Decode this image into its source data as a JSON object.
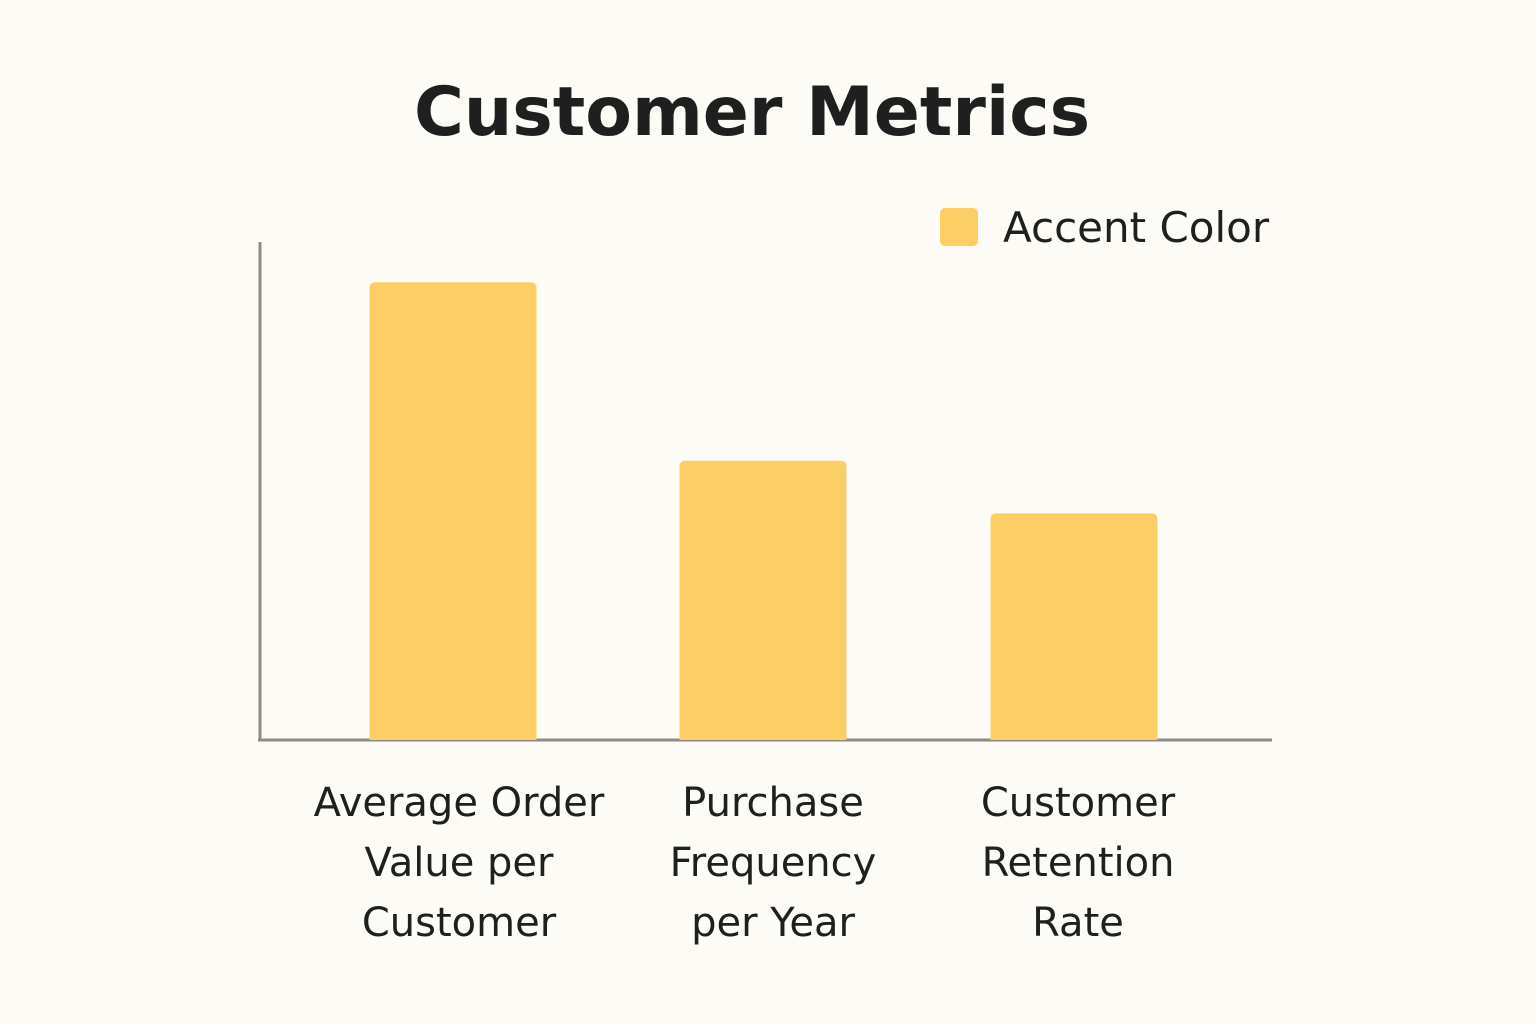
{
  "chart_data": {
    "type": "bar",
    "title": "Customer Metrics",
    "categories": [
      [
        "Average Order",
        "Value per",
        "Customer"
      ],
      [
        "Purchase",
        "Frequency",
        "per Year"
      ],
      [
        "Customer",
        "Retention",
        "Rate"
      ]
    ],
    "series": [
      {
        "name": "Accent Color",
        "values": [
          100,
          61,
          49.5
        ]
      }
    ],
    "xlabel": "",
    "ylabel": "",
    "ylim": [
      0,
      109
    ],
    "grid": false,
    "axis_ticks": false,
    "legend_position": "top-right",
    "colors": {
      "bar": "#fccf66",
      "axis": "#8f8a86",
      "text": "#1f1f1f",
      "background": "#fcfbf6"
    }
  }
}
